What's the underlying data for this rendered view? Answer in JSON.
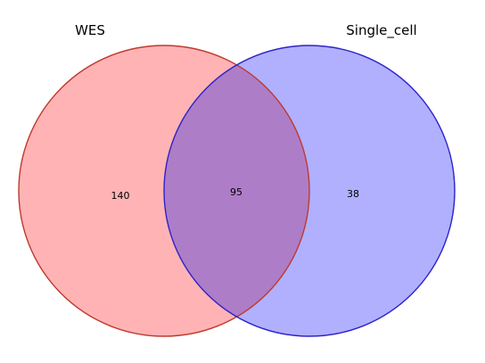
{
  "diagram": {
    "type": "venn2",
    "sets": [
      {
        "label": "WES",
        "color": "#ff0000",
        "edge_color": "#c0392b"
      },
      {
        "label": "Single_cell",
        "color": "#0000ff",
        "edge_color": "#2d23c8"
      }
    ],
    "regions": {
      "only_left": "140",
      "intersection": "95",
      "only_right": "38"
    },
    "colors": {
      "left_fill": "#ffb3b5",
      "right_fill": "#b0b0fe",
      "overlap_fill": "#ae7dc8"
    }
  }
}
